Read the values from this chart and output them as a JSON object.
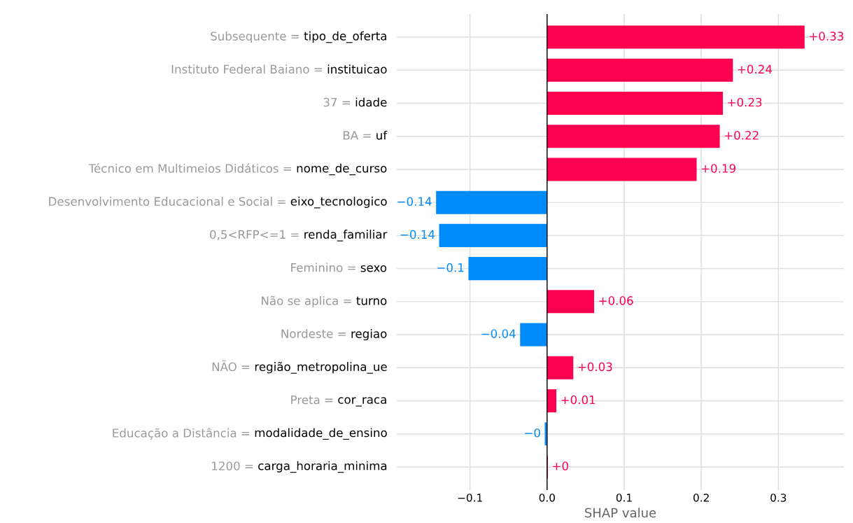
{
  "chart_data": {
    "type": "bar",
    "orientation": "horizontal",
    "xlabel": "SHAP value",
    "categories": [
      "Subsequente = tipo_de_oferta",
      "Instituto Federal Baiano = instituicao",
      "37 = idade",
      "BA = uf",
      "Técnico em Multimeios Didáticos = nome_de_curso",
      "Desenvolvimento Educacional e Social = eixo_tecnologico",
      "0,5<RFP<=1 = renda_familiar",
      "Feminino = sexo",
      "Não se aplica = turno",
      "Nordeste = regiao",
      "NÃO = região_metropolina_ue",
      "Preta = cor_raca",
      "Educação a Distância = modalidade_de_ensino",
      "1200 = carga_horaria_minima"
    ],
    "values": [
      0.334,
      0.241,
      0.228,
      0.224,
      0.194,
      -0.144,
      -0.14,
      -0.102,
      0.061,
      -0.035,
      0.034,
      0.012,
      -0.003,
      0.001
    ],
    "value_labels": [
      "+0.33",
      "+0.24",
      "+0.23",
      "+0.22",
      "+0.19",
      "−0.14",
      "−0.14",
      "−0.1",
      "+0.06",
      "−0.04",
      "+0.03",
      "+0.01",
      "−0",
      "+0"
    ],
    "colors": [
      "#ff0051",
      "#ff0051",
      "#ff0051",
      "#ff0051",
      "#ff0051",
      "#008bfb",
      "#008bfb",
      "#008bfb",
      "#ff0051",
      "#008bfb",
      "#ff0051",
      "#ff0051",
      "#008bfb",
      "#ff0051"
    ],
    "xlim": [
      -0.195,
      0.385
    ],
    "xticks": [
      {
        "value": -0.1,
        "label": "−0.1"
      },
      {
        "value": 0.0,
        "label": "0.0"
      },
      {
        "value": 0.1,
        "label": "0.1"
      },
      {
        "value": 0.2,
        "label": "0.2"
      },
      {
        "value": 0.3,
        "label": "0.3"
      }
    ],
    "ref_lines": [
      {
        "axis": "x",
        "value": 0,
        "color": "#000000"
      }
    ],
    "grid": true
  }
}
